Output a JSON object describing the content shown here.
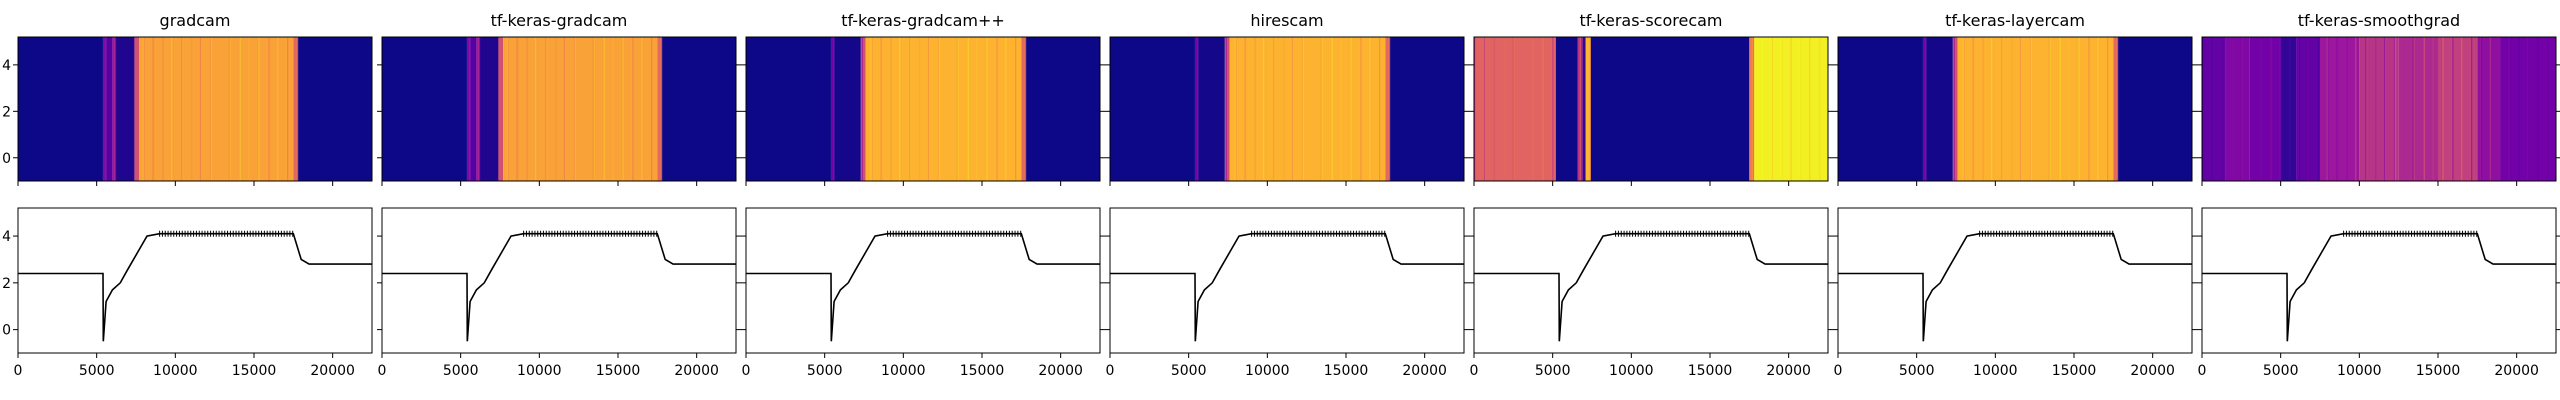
{
  "figure": {
    "colors": {
      "plasma_low": "#0d0887",
      "plasma_mid": "#cc4778",
      "plasma_high": "#f0f921",
      "line": "#000000",
      "axis": "#000000"
    },
    "shared_x_ticks": [
      "0",
      "5000",
      "10000",
      "15000",
      "20000"
    ],
    "heat_y_ticks": [
      "4",
      "2",
      "0"
    ],
    "line_y_ticks": [
      "4",
      "2",
      "0"
    ]
  },
  "chart_data": [
    {
      "type": "heatmap",
      "title": "gradcam",
      "xlim": [
        0,
        22500
      ],
      "colormap": "plasma",
      "segments": [
        {
          "x0": 0,
          "x1": 5400,
          "v": 0.0
        },
        {
          "x0": 5400,
          "x1": 5600,
          "v": 0.35
        },
        {
          "x0": 5600,
          "x1": 6000,
          "v": 0.2
        },
        {
          "x0": 6000,
          "x1": 6200,
          "v": 0.45
        },
        {
          "x0": 6200,
          "x1": 7400,
          "v": 0.05
        },
        {
          "x0": 7400,
          "x1": 7700,
          "v": 0.55
        },
        {
          "x0": 7700,
          "x1": 17500,
          "v": 0.8
        },
        {
          "x0": 17500,
          "x1": 17800,
          "v": 0.6
        },
        {
          "x0": 17800,
          "x1": 22500,
          "v": 0.0
        }
      ]
    },
    {
      "type": "heatmap",
      "title": "tf-keras-gradcam",
      "xlim": [
        0,
        22500
      ],
      "colormap": "plasma",
      "segments": [
        {
          "x0": 0,
          "x1": 5400,
          "v": 0.0
        },
        {
          "x0": 5400,
          "x1": 5600,
          "v": 0.35
        },
        {
          "x0": 5600,
          "x1": 6000,
          "v": 0.2
        },
        {
          "x0": 6000,
          "x1": 6200,
          "v": 0.45
        },
        {
          "x0": 6200,
          "x1": 7400,
          "v": 0.05
        },
        {
          "x0": 7400,
          "x1": 7700,
          "v": 0.55
        },
        {
          "x0": 7700,
          "x1": 17500,
          "v": 0.8
        },
        {
          "x0": 17500,
          "x1": 17800,
          "v": 0.6
        },
        {
          "x0": 17800,
          "x1": 22500,
          "v": 0.0
        }
      ]
    },
    {
      "type": "heatmap",
      "title": "tf-keras-gradcam++",
      "xlim": [
        0,
        22500
      ],
      "colormap": "plasma",
      "segments": [
        {
          "x0": 0,
          "x1": 5400,
          "v": 0.0
        },
        {
          "x0": 5400,
          "x1": 5600,
          "v": 0.3
        },
        {
          "x0": 5600,
          "x1": 7300,
          "v": 0.02
        },
        {
          "x0": 7300,
          "x1": 7600,
          "v": 0.55
        },
        {
          "x0": 7600,
          "x1": 17500,
          "v": 0.84
        },
        {
          "x0": 17500,
          "x1": 17800,
          "v": 0.6
        },
        {
          "x0": 17800,
          "x1": 22500,
          "v": 0.0
        }
      ]
    },
    {
      "type": "heatmap",
      "title": "hirescam",
      "xlim": [
        0,
        22500
      ],
      "colormap": "plasma",
      "segments": [
        {
          "x0": 0,
          "x1": 5400,
          "v": 0.0
        },
        {
          "x0": 5400,
          "x1": 5600,
          "v": 0.3
        },
        {
          "x0": 5600,
          "x1": 7300,
          "v": 0.02
        },
        {
          "x0": 7300,
          "x1": 7600,
          "v": 0.55
        },
        {
          "x0": 7600,
          "x1": 17500,
          "v": 0.84
        },
        {
          "x0": 17500,
          "x1": 17800,
          "v": 0.6
        },
        {
          "x0": 17800,
          "x1": 22500,
          "v": 0.0
        }
      ]
    },
    {
      "type": "heatmap",
      "title": "tf-keras-scorecam",
      "xlim": [
        0,
        22500
      ],
      "colormap": "plasma",
      "segments": [
        {
          "x0": 0,
          "x1": 5200,
          "v": 0.58
        },
        {
          "x0": 5200,
          "x1": 6600,
          "v": 0.0
        },
        {
          "x0": 6600,
          "x1": 6900,
          "v": 0.5
        },
        {
          "x0": 6900,
          "x1": 7100,
          "v": 0.1
        },
        {
          "x0": 7100,
          "x1": 7400,
          "v": 0.85
        },
        {
          "x0": 7400,
          "x1": 17500,
          "v": 0.0
        },
        {
          "x0": 17500,
          "x1": 17800,
          "v": 0.7
        },
        {
          "x0": 17800,
          "x1": 22500,
          "v": 0.98
        }
      ]
    },
    {
      "type": "heatmap",
      "title": "tf-keras-layercam",
      "xlim": [
        0,
        22500
      ],
      "colormap": "plasma",
      "segments": [
        {
          "x0": 0,
          "x1": 5400,
          "v": 0.0
        },
        {
          "x0": 5400,
          "x1": 5600,
          "v": 0.3
        },
        {
          "x0": 5600,
          "x1": 7300,
          "v": 0.02
        },
        {
          "x0": 7300,
          "x1": 7600,
          "v": 0.55
        },
        {
          "x0": 7600,
          "x1": 17500,
          "v": 0.84
        },
        {
          "x0": 17500,
          "x1": 17800,
          "v": 0.6
        },
        {
          "x0": 17800,
          "x1": 22500,
          "v": 0.0
        }
      ]
    },
    {
      "type": "heatmap",
      "title": "tf-keras-smoothgrad",
      "xlim": [
        0,
        22500
      ],
      "colormap": "plasma",
      "segments": [
        {
          "x0": 0,
          "x1": 1500,
          "v": 0.25
        },
        {
          "x0": 1500,
          "x1": 3000,
          "v": 0.35
        },
        {
          "x0": 3000,
          "x1": 5000,
          "v": 0.3
        },
        {
          "x0": 5000,
          "x1": 6000,
          "v": 0.1
        },
        {
          "x0": 6000,
          "x1": 7500,
          "v": 0.25
        },
        {
          "x0": 7500,
          "x1": 10000,
          "v": 0.45
        },
        {
          "x0": 10000,
          "x1": 12500,
          "v": 0.5
        },
        {
          "x0": 12500,
          "x1": 15000,
          "v": 0.48
        },
        {
          "x0": 15000,
          "x1": 17500,
          "v": 0.52
        },
        {
          "x0": 17500,
          "x1": 19000,
          "v": 0.4
        },
        {
          "x0": 19000,
          "x1": 22500,
          "v": 0.3
        }
      ]
    },
    {
      "type": "line",
      "series_shared": true,
      "xlim": [
        0,
        22500
      ],
      "ylim": [
        -1,
        5.2
      ],
      "x": [
        0,
        5000,
        5300,
        5400,
        5420,
        5600,
        6000,
        6500,
        7000,
        7600,
        8200,
        9000,
        17500,
        18000,
        18500,
        22500
      ],
      "y": [
        2.4,
        2.4,
        2.4,
        2.4,
        -0.5,
        1.2,
        1.7,
        2.0,
        2.6,
        3.3,
        4.0,
        4.1,
        4.1,
        3.0,
        2.8,
        2.8
      ]
    }
  ]
}
